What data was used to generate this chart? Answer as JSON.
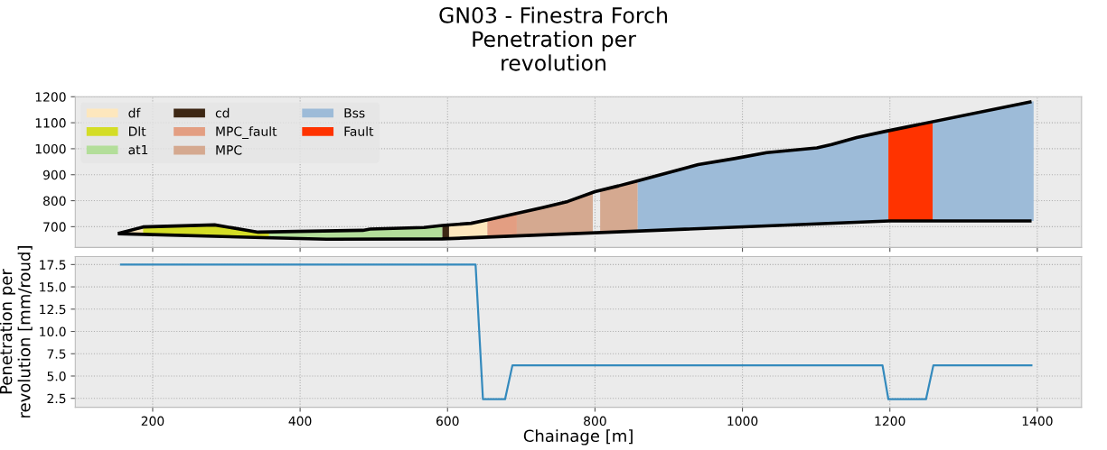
{
  "chart_data": [
    {
      "type": "area",
      "title": "GN03 - Finestra Forch\nPenetration per\nrevolution",
      "xlim": [
        95,
        1460
      ],
      "xticks": [
        200,
        400,
        600,
        800,
        1000,
        1200,
        1400
      ],
      "ylim": [
        620,
        1200
      ],
      "yticks": [
        700,
        800,
        900,
        1000,
        1100,
        1200
      ],
      "tick_labels": "y",
      "grid": true,
      "legend": "top left",
      "series": [
        {
          "name": "df",
          "color": "#fde7bd",
          "x": [
            155,
            187,
            395,
            602,
            632,
            654
          ],
          "values": [
            675,
            699,
            null,
            707,
            713,
            726
          ]
        },
        {
          "name": "Dlt",
          "color": "#d4dd26",
          "x": [
            187,
            284,
            343,
            358
          ],
          "values": [
            699,
            707,
            679,
            680
          ]
        },
        {
          "name": "at1",
          "color": "#b3de9a",
          "x": [
            358,
            485,
            495,
            568,
            593
          ],
          "values": [
            680,
            686,
            691,
            697,
            705
          ]
        },
        {
          "name": "cd",
          "color": "#3d2714",
          "x": [
            593,
            602
          ],
          "values": [
            705,
            707
          ]
        },
        {
          "name": "MPC_fault",
          "color": "#e39e82",
          "x": [
            654,
            656,
            694
          ],
          "values": [
            726,
            727,
            751
          ]
        },
        {
          "name": "MPC",
          "color": "#d5a990",
          "x": [
            694,
            730,
            763,
            797,
            802,
            807,
            832,
            857,
            858
          ],
          "values": [
            751,
            774,
            797,
            829,
            null,
            840,
            857,
            876,
            877
          ]
        },
        {
          "name": "Bss",
          "color": "#9dbbd8",
          "x": [
            858,
            940,
            989,
            1033,
            1101,
            1121,
            1155,
            1194,
            1198,
            1228,
            1258,
            1390,
            1395
          ],
          "values": [
            877,
            939,
            962,
            985,
            1003,
            1016,
            1043,
            1067,
            1069,
            null,
            1104,
            1180,
            1183
          ]
        },
        {
          "name": "Fault",
          "color": "#ff3300",
          "x": [
            1198,
            1258
          ],
          "values": [
            1069,
            1104
          ]
        },
        {
          "type": "line",
          "color": "#000000",
          "x": [
            155,
            187,
            284,
            343,
            485,
            495,
            568,
            593,
            632,
            656,
            730,
            763,
            800,
            832,
            857,
            940,
            989,
            1033,
            1101,
            1121,
            1155,
            1194,
            1390
          ],
          "values": [
            675,
            699,
            707,
            679,
            686,
            691,
            697,
            705,
            713,
            727,
            774,
            797,
            835,
            857,
            876,
            939,
            962,
            985,
            1003,
            1016,
            1043,
            1067,
            1180
          ]
        },
        {
          "type": "line",
          "color": "#000000",
          "x": [
            155,
            350,
            436,
            593,
            1199,
            1390
          ],
          "values": [
            673,
            658,
            652,
            653,
            722,
            722
          ]
        }
      ]
    },
    {
      "type": "line",
      "xlabel": "Chainage [m]",
      "ylabel": "Penetration per\nrevolution [mm/roud]",
      "xlim": [
        95,
        1460
      ],
      "xticks": [
        200,
        400,
        600,
        800,
        1000,
        1200,
        1400
      ],
      "ylim": [
        1.5,
        18.4
      ],
      "yticks": [
        2.5,
        {
          "value": 5,
          "label": "5.0"
        },
        7.5,
        {
          "value": 10,
          "label": "10.0"
        },
        12.5,
        {
          "value": 15,
          "label": "15.0"
        },
        17.5
      ],
      "grid": true,
      "series": [
        {
          "color": "#348abd",
          "x": [
            157,
            638,
            648,
            678,
            688,
            1190,
            1198,
            1249,
            1259,
            1392
          ],
          "values": [
            17.5,
            17.5,
            2.4,
            2.4,
            6.2,
            6.2,
            2.4,
            2.4,
            6.2,
            6.2
          ]
        }
      ]
    }
  ]
}
